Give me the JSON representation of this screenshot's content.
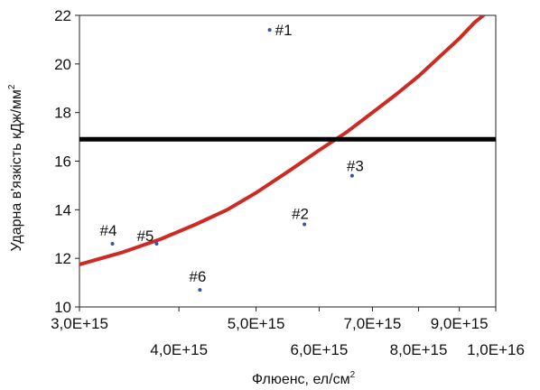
{
  "chart_data": {
    "type": "scatter",
    "title": "",
    "xlabel": "Флюенс, ел/см",
    "xlabel_sup": "2",
    "ylabel": "Ударна в'язкість кДж/мм",
    "ylabel_sup": "2",
    "xscale": "log",
    "xlim": [
      3000000000000000.0,
      1e+16
    ],
    "ylim": [
      10,
      22
    ],
    "x_ticks": [
      {
        "value": 3000000000000000.0,
        "label": "3,0E+15",
        "row": "top"
      },
      {
        "value": 4000000000000000.0,
        "label": "4,0E+15",
        "row": "bottom"
      },
      {
        "value": 5000000000000000.0,
        "label": "5,0E+15",
        "row": "top"
      },
      {
        "value": 6000000000000000.0,
        "label": "6,0E+15",
        "row": "bottom"
      },
      {
        "value": 7000000000000000.0,
        "label": "7,0E+15",
        "row": "top"
      },
      {
        "value": 8000000000000000.0,
        "label": "8,0E+15",
        "row": "bottom"
      },
      {
        "value": 9000000000000000.0,
        "label": "9,0E+15",
        "row": "top"
      },
      {
        "value": 1e+16,
        "label": "1,0E+16",
        "row": "bottom"
      }
    ],
    "y_ticks": [
      {
        "value": 10,
        "label": "10"
      },
      {
        "value": 12,
        "label": "12"
      },
      {
        "value": 14,
        "label": "14"
      },
      {
        "value": 16,
        "label": "16"
      },
      {
        "value": 18,
        "label": "18"
      },
      {
        "value": 20,
        "label": "20"
      },
      {
        "value": 22,
        "label": "22"
      }
    ],
    "points": [
      {
        "label": "#1",
        "x": 5200000000000000.0,
        "y": 21.4
      },
      {
        "label": "#2",
        "x": 5750000000000000.0,
        "y": 13.4
      },
      {
        "label": "#3",
        "x": 6600000000000000.0,
        "y": 15.4
      },
      {
        "label": "#4",
        "x": 3300000000000000.0,
        "y": 12.6
      },
      {
        "label": "#5",
        "x": 3750000000000000.0,
        "y": 12.6
      },
      {
        "label": "#6",
        "x": 4250000000000000.0,
        "y": 10.7
      }
    ],
    "threshold": {
      "y": 16.9,
      "color": "#000000"
    },
    "trend": {
      "color": "#cc2a22",
      "points": [
        {
          "x": 3000000000000000.0,
          "y": 11.75
        },
        {
          "x": 3400000000000000.0,
          "y": 12.25
        },
        {
          "x": 3800000000000000.0,
          "y": 12.8
        },
        {
          "x": 4200000000000000.0,
          "y": 13.4
        },
        {
          "x": 4600000000000000.0,
          "y": 14.0
        },
        {
          "x": 5000000000000000.0,
          "y": 14.7
        },
        {
          "x": 5500000000000000.0,
          "y": 15.6
        },
        {
          "x": 6000000000000000.0,
          "y": 16.45
        },
        {
          "x": 6500000000000000.0,
          "y": 17.2
        },
        {
          "x": 7000000000000000.0,
          "y": 18.0
        },
        {
          "x": 7500000000000000.0,
          "y": 18.75
        },
        {
          "x": 8000000000000000.0,
          "y": 19.5
        },
        {
          "x": 8500000000000000.0,
          "y": 20.3
        },
        {
          "x": 9000000000000000.0,
          "y": 21.05
        },
        {
          "x": 9400000000000000.0,
          "y": 21.7
        },
        {
          "x": 9650000000000000.0,
          "y": 22.0
        }
      ]
    },
    "point_color": "#3a4fb0"
  }
}
